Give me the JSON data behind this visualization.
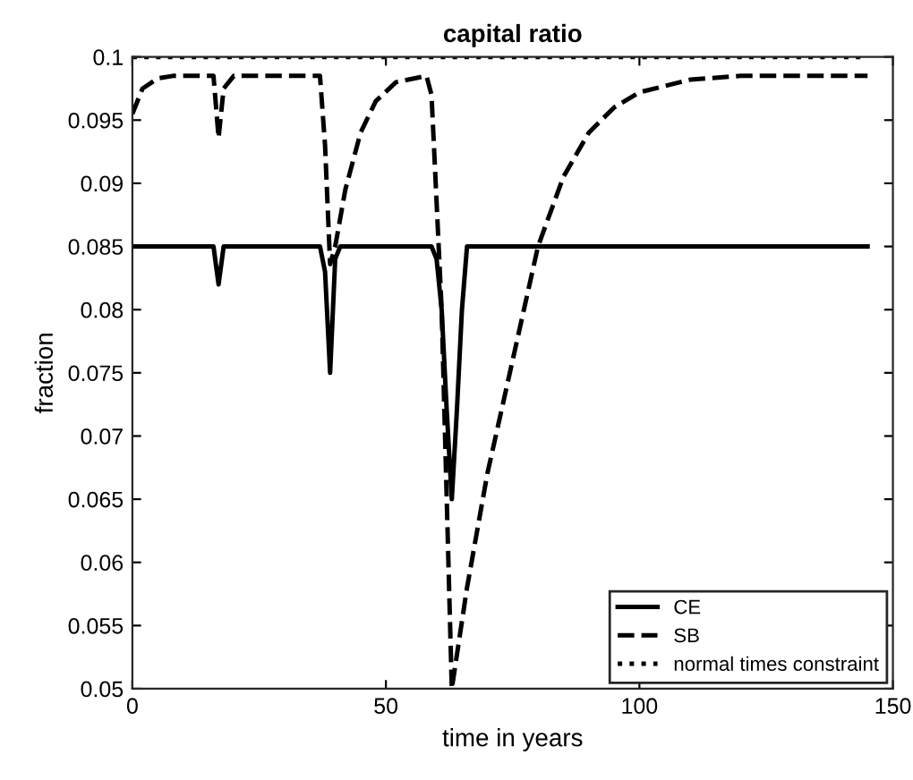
{
  "chart_data": {
    "type": "line",
    "title": "capital ratio",
    "xlabel": "time in years",
    "ylabel": "fraction",
    "xlim": [
      0,
      150
    ],
    "xticks": [
      0,
      50,
      100,
      150
    ],
    "ylim": [
      0.05,
      0.1
    ],
    "yticks": [
      0.05,
      0.055,
      0.06,
      0.065,
      0.07,
      0.075,
      0.08,
      0.085,
      0.09,
      0.095,
      0.1
    ],
    "grid": false,
    "legend": "bottom right",
    "marker": "none",
    "series": [
      {
        "name": "CE",
        "color": "#000000",
        "line_style": "solid",
        "x": [
          0,
          16,
          17,
          18,
          37,
          38,
          39,
          40,
          41,
          59,
          60,
          61,
          62,
          63,
          64,
          65,
          66,
          145
        ],
        "values": [
          0.085,
          0.085,
          0.082,
          0.085,
          0.085,
          0.083,
          0.075,
          0.084,
          0.085,
          0.085,
          0.084,
          0.08,
          0.072,
          0.065,
          0.072,
          0.08,
          0.085,
          0.085
        ]
      },
      {
        "name": "SB",
        "color": "#000000",
        "line_style": "dashed",
        "x": [
          0,
          2,
          5,
          8,
          16,
          17,
          18,
          20,
          37,
          38,
          39,
          40,
          42,
          45,
          48,
          52,
          58,
          59,
          61,
          63,
          66,
          70,
          75,
          80,
          85,
          90,
          95,
          100,
          110,
          120,
          145
        ],
        "values": [
          0.0955,
          0.0975,
          0.0983,
          0.0985,
          0.0985,
          0.0936,
          0.0975,
          0.0985,
          0.0985,
          0.093,
          0.0836,
          0.085,
          0.0895,
          0.094,
          0.0965,
          0.098,
          0.0985,
          0.097,
          0.08,
          0.05,
          0.058,
          0.067,
          0.076,
          0.085,
          0.0905,
          0.094,
          0.096,
          0.0972,
          0.0982,
          0.0985,
          0.0985
        ]
      },
      {
        "name": "normal times constraint",
        "color": "#000000",
        "line_style": "dotted",
        "x": [
          0,
          145
        ],
        "values": [
          0.1,
          0.1
        ]
      }
    ]
  }
}
